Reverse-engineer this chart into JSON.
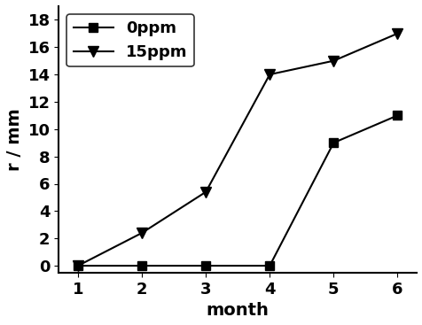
{
  "series": [
    {
      "label": "0ppm",
      "x": [
        1,
        2,
        3,
        4,
        5,
        6
      ],
      "y": [
        0,
        0,
        0,
        0,
        9,
        11
      ],
      "marker": "s",
      "color": "#000000",
      "markersize": 7,
      "linewidth": 1.5
    },
    {
      "label": "15ppm",
      "x": [
        1,
        2,
        3,
        4,
        5,
        6
      ],
      "y": [
        0,
        2.4,
        5.4,
        14,
        15,
        17
      ],
      "marker": "v",
      "color": "#000000",
      "markersize": 9,
      "linewidth": 1.5
    }
  ],
  "xlabel": "month",
  "ylabel": "r / mm",
  "xlim": [
    0.7,
    6.3
  ],
  "ylim": [
    -0.5,
    19
  ],
  "xticks": [
    1,
    2,
    3,
    4,
    5,
    6
  ],
  "yticks": [
    0,
    2,
    4,
    6,
    8,
    10,
    12,
    14,
    16,
    18
  ],
  "legend_loc": "upper left",
  "xlabel_fontsize": 14,
  "ylabel_fontsize": 14,
  "tick_fontsize": 13,
  "legend_fontsize": 13,
  "background_color": "#ffffff",
  "figsize": [
    4.77,
    3.67
  ],
  "dpi": 100
}
